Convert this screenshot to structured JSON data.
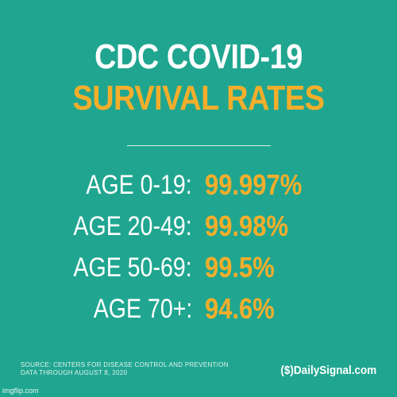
{
  "title_line1": "CDC COVID-19",
  "title_line2": "SURVIVAL RATES",
  "rows": [
    {
      "label": "AGE 0-19:",
      "value": "99.997%"
    },
    {
      "label": "AGE 20-49:",
      "value": "99.98%"
    },
    {
      "label": "AGE 50-69:",
      "value": "99.5%"
    },
    {
      "label": "AGE 70+:",
      "value": "94.6%"
    }
  ],
  "source_line1": "SOURCE: CENTERS FOR DISEASE CONTROL AND PREVENTION",
  "source_line2": "DATA THROUGH AUGUST 8, 2020",
  "brand": {
    "logo": "($)",
    "name": "DailySignal.com"
  },
  "watermark": "imgflip.com",
  "colors": {
    "background": "#20a690",
    "accent": "#f5ae2b",
    "text": "#ffffff"
  }
}
